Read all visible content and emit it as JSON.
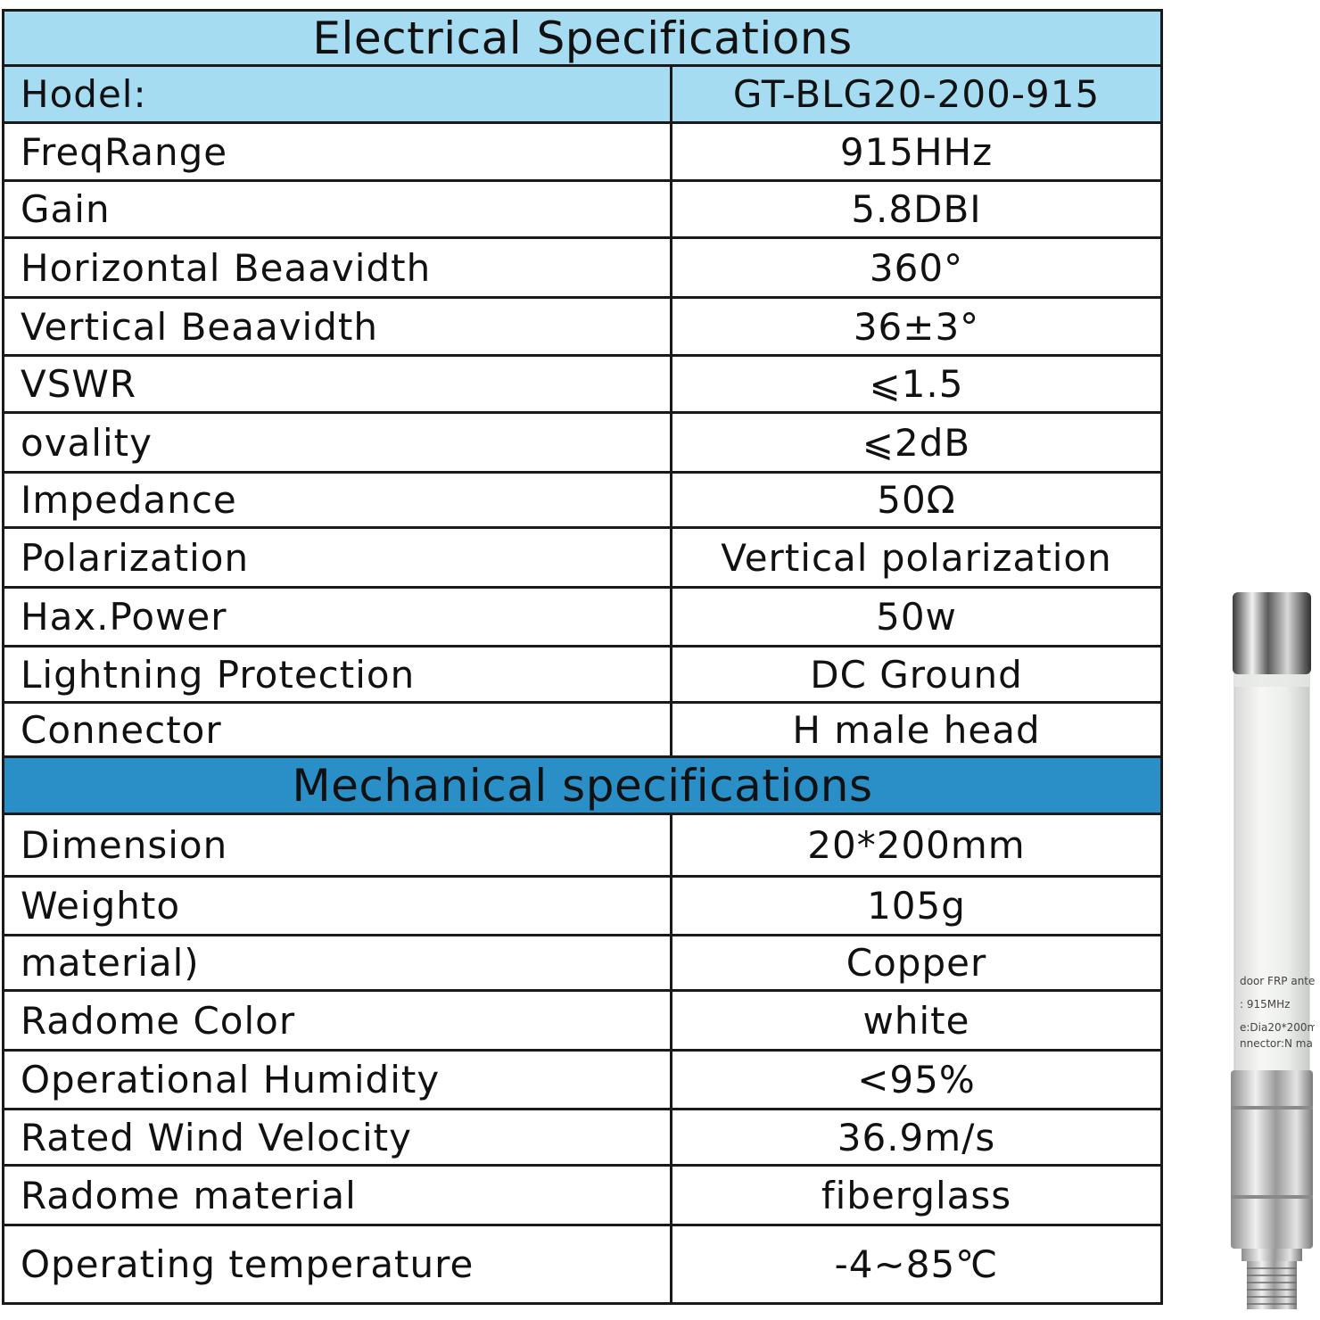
{
  "electrical": {
    "heading": "Electrical Specifications",
    "rows": [
      {
        "label": "Hodel:",
        "value": "GT-BLG20-200-915"
      },
      {
        "label": "FreqRange",
        "value": "915HHz"
      },
      {
        "label": "Gain",
        "value": "5.8DBI"
      },
      {
        "label": "Horizontal Beaavidth",
        "value": "360°"
      },
      {
        "label": "Vertical Beaavidth",
        "value": "36±3°"
      },
      {
        "label": "VSWR",
        "value": "⩽1.5"
      },
      {
        "label": "ovality",
        "value": "⩽2dB"
      },
      {
        "label": "Impedance",
        "value": "50Ω"
      },
      {
        "label": "Polarization",
        "value": "Vertical polarization"
      },
      {
        "label": "Hax.Power",
        "value": "50w"
      },
      {
        "label": "Lightning Protection",
        "value": "DC Ground"
      },
      {
        "label": "Connector",
        "value": "H male head"
      }
    ]
  },
  "mechanical": {
    "heading": "Mechanical specifications",
    "rows": [
      {
        "label": "Dimension",
        "value": "20*200mm"
      },
      {
        "label": "Weighto",
        "value": "105g"
      },
      {
        "label": "material)",
        "value": "Copper"
      },
      {
        "label": "Radome Color",
        "value": "white"
      },
      {
        "label": "Operational Humidity",
        "value": "<95%"
      },
      {
        "label": "Rated Wind Velocity",
        "value": "36.9m/s"
      },
      {
        "label": "Radome material",
        "value": "fiberglass"
      },
      {
        "label": "Operating temperature",
        "value": "-4~85℃"
      }
    ]
  },
  "antenna_label": {
    "line1": "door FRP ante",
    "line2": ": 915MHz",
    "line3": "e:Dia20*200m",
    "line4": "nnector:N ma"
  },
  "colors": {
    "header_light": "#a6dcf2",
    "header_dark": "#2b8fc7",
    "border": "#1a1a1a"
  }
}
